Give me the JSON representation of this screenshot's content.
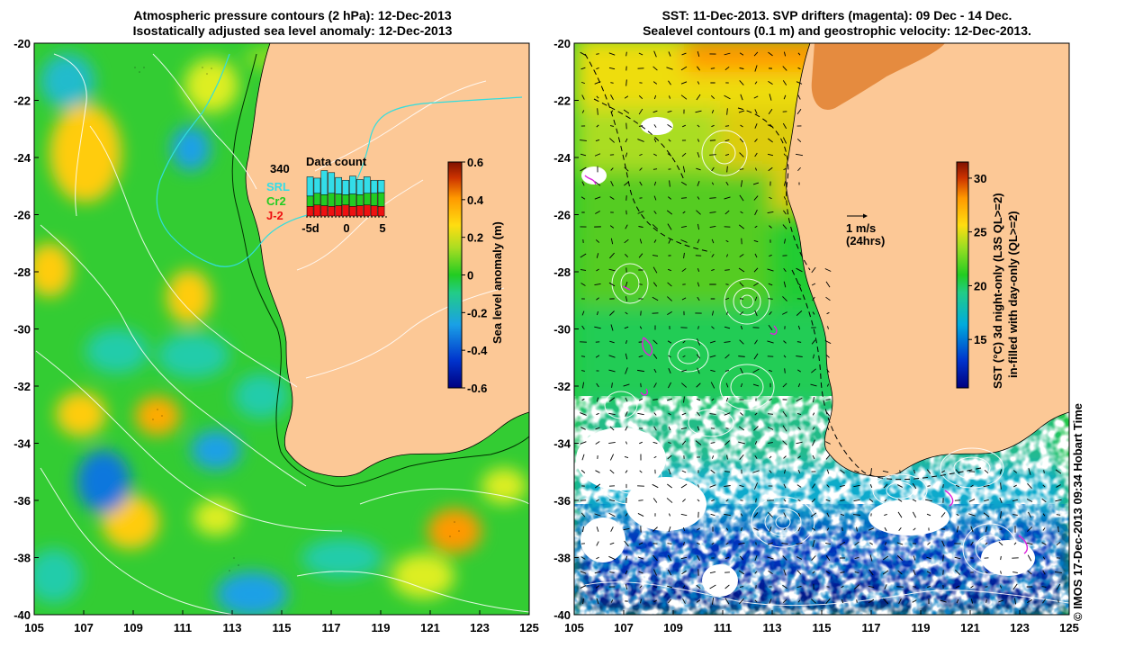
{
  "left_panel": {
    "title_line1": "Atmospheric pressure contours (2 hPa): 12-Dec-2013",
    "title_line2": "Isostatically adjusted sea level anomaly: 12-Dec-2013",
    "colorbar": {
      "label": "Sea level anomaly (m)",
      "ticks": [
        "0.6",
        "0.4",
        "0.2",
        "0",
        "-0.2",
        "-0.4",
        "-0.6"
      ],
      "min": -0.6,
      "max": 0.6
    },
    "inset": {
      "title": "Data count",
      "max_label": "340",
      "legend": [
        {
          "name": "SRL",
          "color": "#33dde8"
        },
        {
          "name": "Cr2",
          "color": "#22cc22"
        },
        {
          "name": "J-2",
          "color": "#ee1111"
        }
      ],
      "x_ticks": [
        "-5d",
        "0",
        "5"
      ],
      "counts": [
        {
          "j2": 70,
          "cr2": 75,
          "srl": 140
        },
        {
          "j2": 80,
          "cr2": 85,
          "srl": 110
        },
        {
          "j2": 75,
          "cr2": 80,
          "srl": 175
        },
        {
          "j2": 70,
          "cr2": 95,
          "srl": 150
        },
        {
          "j2": 75,
          "cr2": 85,
          "srl": 120
        },
        {
          "j2": 80,
          "cr2": 75,
          "srl": 105
        },
        {
          "j2": 70,
          "cr2": 90,
          "srl": 130
        },
        {
          "j2": 75,
          "cr2": 80,
          "srl": 110
        },
        {
          "j2": 80,
          "cr2": 85,
          "srl": 120
        },
        {
          "j2": 75,
          "cr2": 90,
          "srl": 95
        },
        {
          "j2": 70,
          "cr2": 100,
          "srl": 90
        }
      ]
    }
  },
  "right_panel": {
    "title_line1": "SST: 11-Dec-2013. SVP drifters (magenta): 09 Dec - 14 Dec.",
    "title_line2": "Sealevel contours (0.1 m) and geostrophic velocity: 12-Dec-2013.",
    "colorbar": {
      "label_line1": "SST (°C)  3d night-only (L3S QL>=2)",
      "label_line2": "in-filled with day-only (QL>=2)",
      "ticks": [
        "30",
        "25",
        "20",
        "15"
      ],
      "min": 10.5,
      "max": 31.5
    },
    "velocity_key": {
      "label": "1 m/s",
      "sublabel": "(24hrs)"
    }
  },
  "axes": {
    "lon_ticks": [
      "105",
      "107",
      "109",
      "111",
      "113",
      "115",
      "117",
      "119",
      "121",
      "123",
      "125"
    ],
    "lat_ticks": [
      "-20",
      "-22",
      "-24",
      "-26",
      "-28",
      "-30",
      "-32",
      "-34",
      "-36",
      "-38",
      "-40"
    ],
    "lon_range": [
      105,
      125
    ],
    "lat_range": [
      -40,
      -20
    ]
  },
  "copyright": "© IMOS 17-Dec-2013 09:34 Hobart Time",
  "colors": {
    "land": "#fcc896",
    "sla_colormap": [
      "#00007f",
      "#0033cc",
      "#1aa0e6",
      "#22cc88",
      "#22cc22",
      "#aadd22",
      "#ffdd11",
      "#ff9900",
      "#cc3300",
      "#7f1100"
    ],
    "sst_colormap": [
      "#00007f",
      "#0033cc",
      "#00aadd",
      "#22cc88",
      "#22cc22",
      "#99dd22",
      "#ffdd11",
      "#ff9900",
      "#cc3300",
      "#7f1100"
    ]
  }
}
